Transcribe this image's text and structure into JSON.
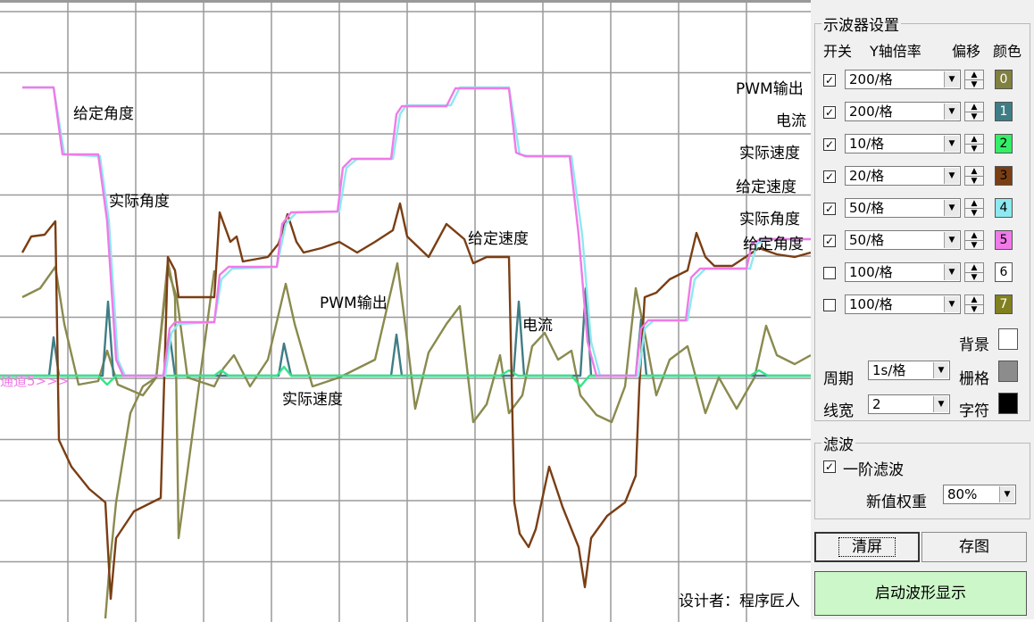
{
  "scope": {
    "channel_marker": "通道5>>>",
    "designer": "设计者：程序匠人",
    "labels": {
      "set_angle": "给定角度",
      "actual_angle": "实际角度",
      "set_speed": "给定速度",
      "pwm": "PWM输出",
      "current": "电流",
      "actual_speed": "实际速度"
    },
    "series_colors": {
      "pwm": "#8a8a4e",
      "current": "#3f7d86",
      "actual_speed": "#33e68a",
      "set_speed": "#7a3e14",
      "actual_angle": "#8ee8f0",
      "set_angle": "#f07ae8"
    }
  },
  "panel": {
    "group_title": "示波器设置",
    "headers": {
      "switch": "开关",
      "yscale": "Y轴倍率",
      "offset": "偏移",
      "color": "颜色"
    },
    "channels": [
      {
        "name": "PWM输出",
        "checked": "✓",
        "scale": "200/格",
        "index": "0",
        "color": "#808040",
        "text_color": "#ffffff"
      },
      {
        "name": "电流",
        "checked": "✓",
        "scale": "200/格",
        "index": "1",
        "color": "#3f7d86",
        "text_color": "#ffffff"
      },
      {
        "name": "实际速度",
        "checked": "✓",
        "scale": "10/格",
        "index": "2",
        "color": "#33ee66",
        "text_color": "#000000"
      },
      {
        "name": "给定速度",
        "checked": "✓",
        "scale": "20/格",
        "index": "3",
        "color": "#7a3e14",
        "text_color": "#000000"
      },
      {
        "name": "实际角度",
        "checked": "✓",
        "scale": "50/格",
        "index": "4",
        "color": "#8ee8f0",
        "text_color": "#000000"
      },
      {
        "name": "给定角度",
        "checked": "✓",
        "scale": "50/格",
        "index": "5",
        "color": "#f07ae8",
        "text_color": "#000000"
      },
      {
        "name": "",
        "checked": "",
        "scale": "100/格",
        "index": "6",
        "color": "#ffffff",
        "text_color": "#000000"
      },
      {
        "name": "",
        "checked": "",
        "scale": "100/格",
        "index": "7",
        "color": "#808020",
        "text_color": "#ffffff"
      }
    ],
    "background_label": "背景",
    "period_label": "周期",
    "period_value": "1s/格",
    "grid_label": "栅格",
    "linewidth_label": "线宽",
    "linewidth_value": "2",
    "char_label": "字符",
    "filter_group": "滤波",
    "filter_checked": "✓",
    "filter_label": "一阶滤波",
    "weight_label": "新值权重",
    "weight_value": "80%",
    "clear_btn": "清屏",
    "save_btn": "存图",
    "start_btn": "启动波形显示"
  }
}
